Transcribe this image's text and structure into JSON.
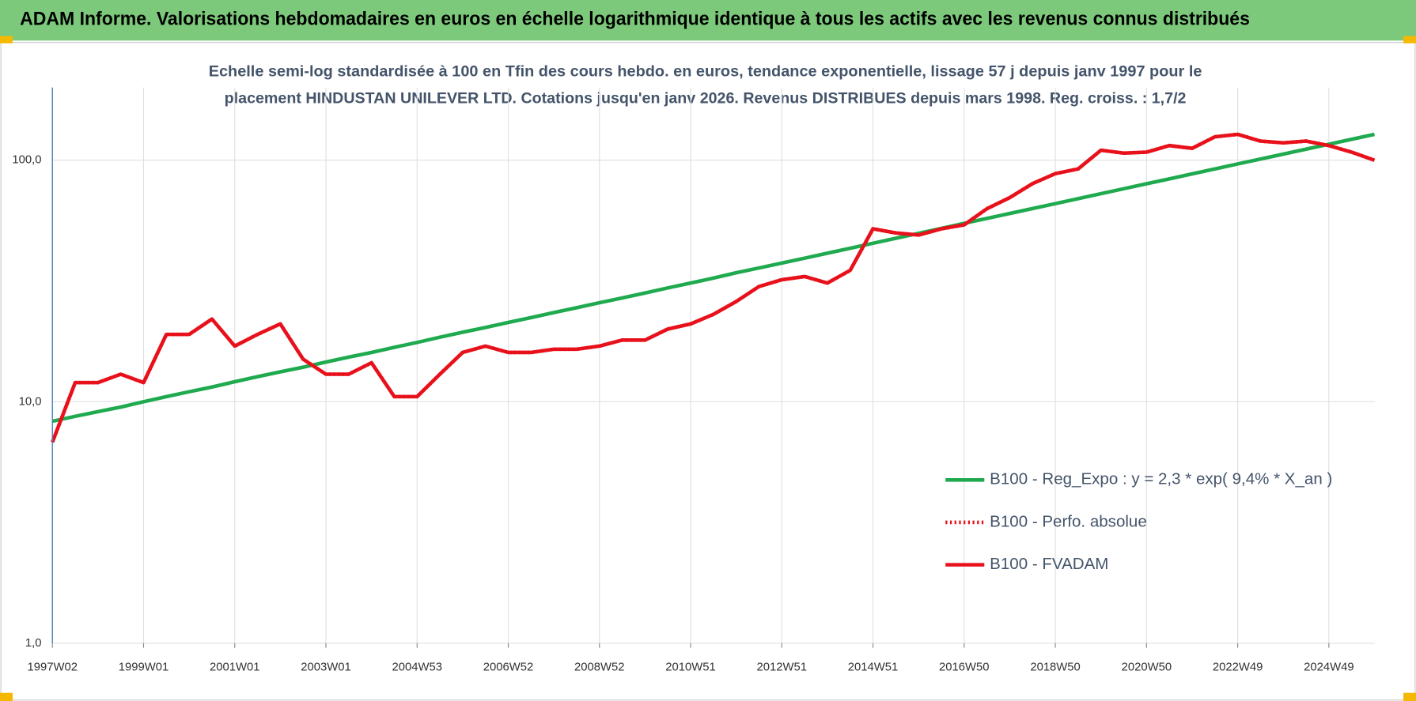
{
  "chart_data": {
    "type": "line",
    "header": "ADAM Informe. Valorisations hebdomadaires en euros en échelle logarithmique identique à tous les actifs avec les revenus connus distribués",
    "title": "Echelle semi-log standardisée à 100 en Tfin des cours hebdo. en euros, tendance exponentielle, lissage 57 j depuis janv 1997 pour le",
    "subtitle": "placement HINDUSTAN UNILEVER LTD. Cotations jusqu'en janv 2026. Revenus DISTRIBUES depuis mars 1998. Reg. croiss. : 1,7/2",
    "log_scale": true,
    "grid": true,
    "ylim": [
      1,
      200
    ],
    "yticks": [
      {
        "value": 1,
        "label": "1,0"
      },
      {
        "value": 10,
        "label": "10,0"
      },
      {
        "value": 100,
        "label": "100,0"
      }
    ],
    "categories": [
      "1997W02",
      null,
      null,
      null,
      "1999W01",
      null,
      null,
      null,
      "2001W01",
      null,
      null,
      null,
      "2003W01",
      null,
      null,
      null,
      "2004W53",
      null,
      null,
      null,
      "2006W52",
      null,
      null,
      null,
      "2008W52",
      null,
      null,
      null,
      "2010W51",
      null,
      null,
      null,
      "2012W51",
      null,
      null,
      null,
      "2014W51",
      null,
      null,
      null,
      "2016W50",
      null,
      null,
      null,
      "2018W50",
      null,
      null,
      null,
      "2020W50",
      null,
      null,
      null,
      "2022W49",
      null,
      null,
      null,
      "2024W49",
      null,
      null
    ],
    "series": [
      {
        "name": "B100 - Reg_Expo : y = 2,3 * exp( 9,4% *  X_an )",
        "color": "#1faa4f",
        "style": "solid",
        "values": [
          8.3,
          8.7,
          9.1,
          9.5,
          10.0,
          10.5,
          11.0,
          11.5,
          12.1,
          12.7,
          13.3,
          13.9,
          14.6,
          15.3,
          16.0,
          16.8,
          17.6,
          18.5,
          19.4,
          20.3,
          21.3,
          22.3,
          23.4,
          24.5,
          25.7,
          26.9,
          28.2,
          29.6,
          31.0,
          32.5,
          34.2,
          35.8,
          37.5,
          39.3,
          41.2,
          43.2,
          45.3,
          47.5,
          49.8,
          52.2,
          54.8,
          57.4,
          60.2,
          63.1,
          66.1,
          69.3,
          72.7,
          76.2,
          79.9,
          83.7,
          87.8,
          92.0,
          96.5,
          101.1,
          106.0,
          111.1,
          116.5,
          122.1,
          128.0
        ]
      },
      {
        "name": "B100 - Perfo. absolue",
        "color": "#e8111b",
        "style": "dotted",
        "values": [
          6.8,
          12,
          12,
          13,
          12,
          19,
          19,
          22,
          17,
          19,
          21,
          15,
          13,
          13,
          14.5,
          10.5,
          10.5,
          13,
          16,
          17,
          16,
          16,
          16.5,
          16.5,
          17,
          18,
          18,
          20,
          21,
          23,
          26,
          30,
          32,
          33,
          31,
          35,
          52,
          50,
          49,
          52,
          54,
          63,
          70,
          80,
          88,
          92,
          110,
          107,
          108,
          115,
          112,
          125,
          128,
          120,
          118,
          120,
          115,
          108,
          100
        ]
      },
      {
        "name": "B100 - FVADAM",
        "color": "#e8111b",
        "style": "solid",
        "values": [
          6.8,
          12,
          12,
          13,
          12,
          19,
          19,
          22,
          17,
          19,
          21,
          15,
          13,
          13,
          14.5,
          10.5,
          10.5,
          13,
          16,
          17,
          16,
          16,
          16.5,
          16.5,
          17,
          18,
          18,
          20,
          21,
          23,
          26,
          30,
          32,
          33,
          31,
          35,
          52,
          50,
          49,
          52,
          54,
          63,
          70,
          80,
          88,
          92,
          110,
          107,
          108,
          115,
          112,
          125,
          128,
          120,
          118,
          120,
          115,
          108,
          100
        ]
      }
    ]
  }
}
